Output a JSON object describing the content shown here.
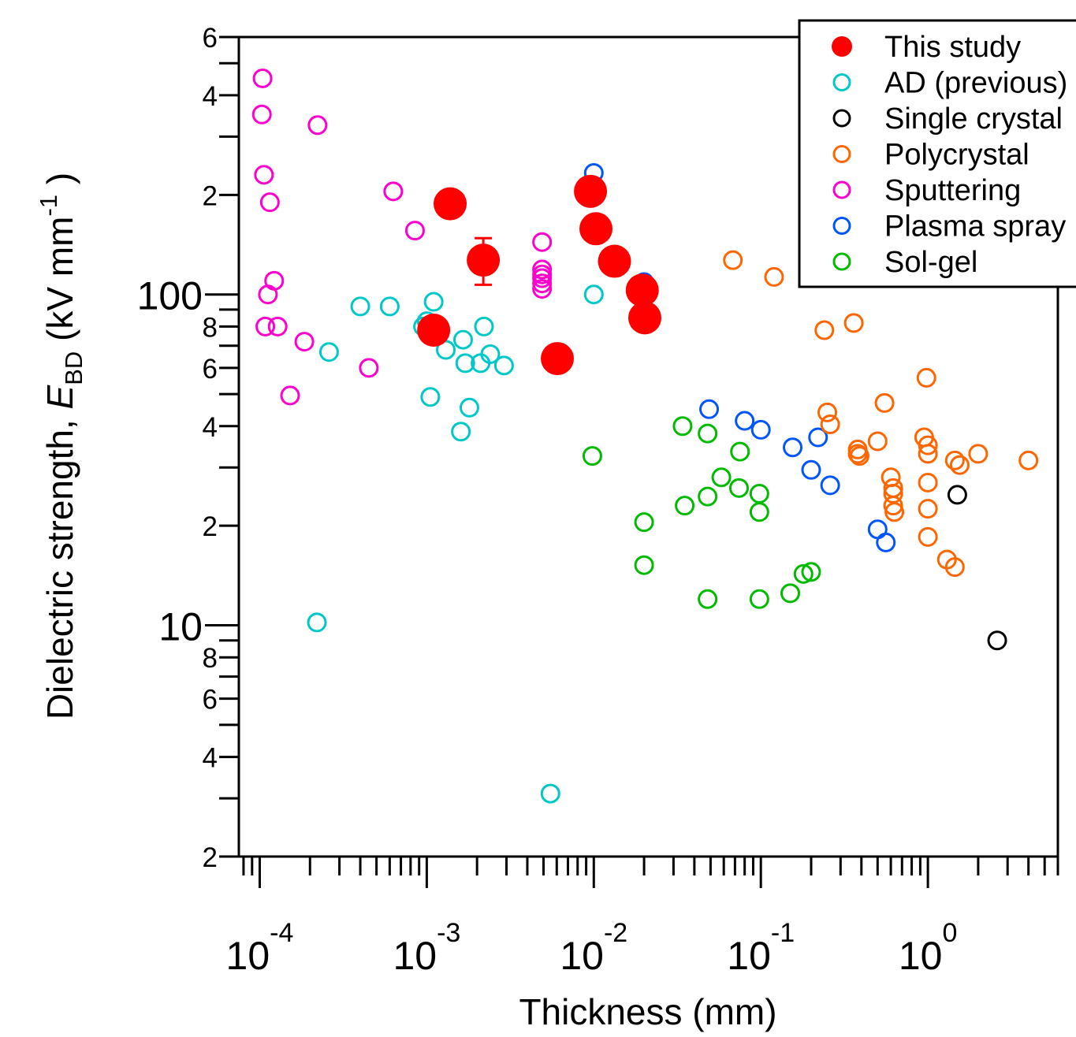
{
  "chart_data": {
    "type": "scatter",
    "xlabel": "Thickness (mm)",
    "ylabel": {
      "prefix": "Dielectric strength, ",
      "symbol": "E",
      "subscript": "BD",
      "unit_open": " (kV mm",
      "unit_sup": "-1",
      "unit_close": " )"
    },
    "xscale": "log",
    "yscale": "log",
    "xlim": [
      7.5e-05,
      6
    ],
    "ylim": [
      2,
      600
    ],
    "x_ticks": [
      {
        "value": 0.0001,
        "base": "10",
        "exp": "-4"
      },
      {
        "value": 0.001,
        "base": "10",
        "exp": "-3"
      },
      {
        "value": 0.01,
        "base": "10",
        "exp": "-2"
      },
      {
        "value": 0.1,
        "base": "10",
        "exp": "-1"
      },
      {
        "value": 1,
        "base": "10",
        "exp": "0"
      }
    ],
    "y_major_ticks": [
      {
        "value": 10,
        "label": "10"
      },
      {
        "value": 100,
        "label": "100"
      }
    ],
    "y_minor_ticks": [
      {
        "value": 2,
        "label": "2"
      },
      {
        "value": 3,
        "label": ""
      },
      {
        "value": 4,
        "label": "4"
      },
      {
        "value": 5,
        "label": ""
      },
      {
        "value": 6,
        "label": "6"
      },
      {
        "value": 7,
        "label": ""
      },
      {
        "value": 8,
        "label": "8"
      },
      {
        "value": 9,
        "label": ""
      },
      {
        "value": 20,
        "label": "2"
      },
      {
        "value": 30,
        "label": ""
      },
      {
        "value": 40,
        "label": "4"
      },
      {
        "value": 50,
        "label": ""
      },
      {
        "value": 60,
        "label": "6"
      },
      {
        "value": 70,
        "label": ""
      },
      {
        "value": 80,
        "label": "8"
      },
      {
        "value": 90,
        "label": ""
      },
      {
        "value": 200,
        "label": "2"
      },
      {
        "value": 300,
        "label": ""
      },
      {
        "value": 400,
        "label": "4"
      },
      {
        "value": 500,
        "label": ""
      },
      {
        "value": 600,
        "label": "6"
      }
    ],
    "legend_position": "top-right",
    "grid": false,
    "series": [
      {
        "name": "This study",
        "color": "#ff0000",
        "filled": true,
        "points": [
          [
            0.00138,
            188
          ],
          [
            0.00218,
            127
          ],
          [
            0.0011,
            78
          ],
          [
            0.00605,
            64
          ],
          [
            0.00955,
            205
          ],
          [
            0.0103,
            158
          ],
          [
            0.0133,
            126
          ],
          [
            0.0195,
            103
          ],
          [
            0.0202,
            85
          ]
        ],
        "error_bars": [
          {
            "x": 0.00218,
            "low": 107,
            "high": 148
          },
          {
            "x": 0.00605,
            "low": 58.5,
            "high": 67
          }
        ]
      },
      {
        "name": "AD (previous)",
        "color": "#00c8c8",
        "filled": false,
        "points": [
          [
            0.00022,
            10.2
          ],
          [
            0.00026,
            67
          ],
          [
            0.0004,
            92
          ],
          [
            0.0006,
            92
          ],
          [
            0.00095,
            80
          ],
          [
            0.001,
            83
          ],
          [
            0.0011,
            95
          ],
          [
            0.00105,
            49
          ],
          [
            0.0013,
            68
          ],
          [
            0.0016,
            38.5
          ],
          [
            0.00165,
            73
          ],
          [
            0.0017,
            62
          ],
          [
            0.0018,
            45.5
          ],
          [
            0.0021,
            62
          ],
          [
            0.0022,
            80
          ],
          [
            0.0024,
            66
          ],
          [
            0.0029,
            61
          ],
          [
            0.0055,
            3.1
          ],
          [
            0.01,
            100
          ]
        ]
      },
      {
        "name": "Single crystal",
        "color": "#000000",
        "filled": false,
        "points": [
          [
            1.5,
            24.8
          ],
          [
            2.6,
            9
          ]
        ]
      },
      {
        "name": "Polycrystal",
        "color": "#ff6600",
        "filled": false,
        "points": [
          [
            0.068,
            127
          ],
          [
            0.12,
            113
          ],
          [
            0.24,
            78
          ],
          [
            0.25,
            44
          ],
          [
            0.26,
            40.5
          ],
          [
            0.36,
            82
          ],
          [
            0.38,
            34
          ],
          [
            0.38,
            33
          ],
          [
            0.39,
            32.5
          ],
          [
            0.5,
            36
          ],
          [
            0.55,
            47
          ],
          [
            0.6,
            28
          ],
          [
            0.62,
            26
          ],
          [
            0.62,
            25
          ],
          [
            0.62,
            23
          ],
          [
            0.63,
            22
          ],
          [
            0.95,
            37
          ],
          [
            0.98,
            56
          ],
          [
            1.0,
            35
          ],
          [
            1.0,
            33
          ],
          [
            1.0,
            27
          ],
          [
            1.0,
            22.5
          ],
          [
            1.0,
            18.5
          ],
          [
            1.3,
            15.8
          ],
          [
            1.45,
            15
          ],
          [
            1.45,
            31.5
          ],
          [
            1.55,
            30.5
          ],
          [
            2.0,
            33
          ],
          [
            4.0,
            31.5
          ]
        ]
      },
      {
        "name": "Sputtering",
        "color": "#ff00cc",
        "filled": false,
        "points": [
          [
            0.000104,
            450
          ],
          [
            0.000103,
            350
          ],
          [
            0.000106,
            230
          ],
          [
            0.000115,
            190
          ],
          [
            0.000112,
            100
          ],
          [
            0.000122,
            110
          ],
          [
            0.000108,
            80
          ],
          [
            0.000128,
            80
          ],
          [
            0.000152,
            49.5
          ],
          [
            0.000185,
            72
          ],
          [
            0.000222,
            325
          ],
          [
            0.00045,
            60
          ],
          [
            0.00063,
            205
          ],
          [
            0.00085,
            156
          ],
          [
            0.0049,
            144
          ],
          [
            0.0049,
            119
          ],
          [
            0.0049,
            115
          ],
          [
            0.0049,
            112
          ],
          [
            0.0049,
            108
          ],
          [
            0.0049,
            104
          ]
        ]
      },
      {
        "name": "Plasma spray",
        "color": "#0055ff",
        "filled": false,
        "points": [
          [
            0.01,
            233
          ],
          [
            0.02,
            109
          ],
          [
            0.049,
            45
          ],
          [
            0.08,
            41.5
          ],
          [
            0.1,
            39
          ],
          [
            0.155,
            34.5
          ],
          [
            0.2,
            29.5
          ],
          [
            0.22,
            37
          ],
          [
            0.26,
            26.5
          ],
          [
            0.5,
            19.5
          ],
          [
            0.56,
            17.8
          ]
        ]
      },
      {
        "name": "Sol-gel",
        "color": "#00bb00",
        "filled": false,
        "points": [
          [
            0.0098,
            32.5
          ],
          [
            0.02,
            20.5
          ],
          [
            0.02,
            15.2
          ],
          [
            0.034,
            40
          ],
          [
            0.035,
            23
          ],
          [
            0.048,
            38
          ],
          [
            0.048,
            24.5
          ],
          [
            0.048,
            12
          ],
          [
            0.058,
            28
          ],
          [
            0.074,
            26
          ],
          [
            0.075,
            33.5
          ],
          [
            0.098,
            25
          ],
          [
            0.098,
            22
          ],
          [
            0.098,
            12
          ],
          [
            0.15,
            12.5
          ],
          [
            0.18,
            14.3
          ],
          [
            0.2,
            14.5
          ]
        ]
      }
    ]
  }
}
